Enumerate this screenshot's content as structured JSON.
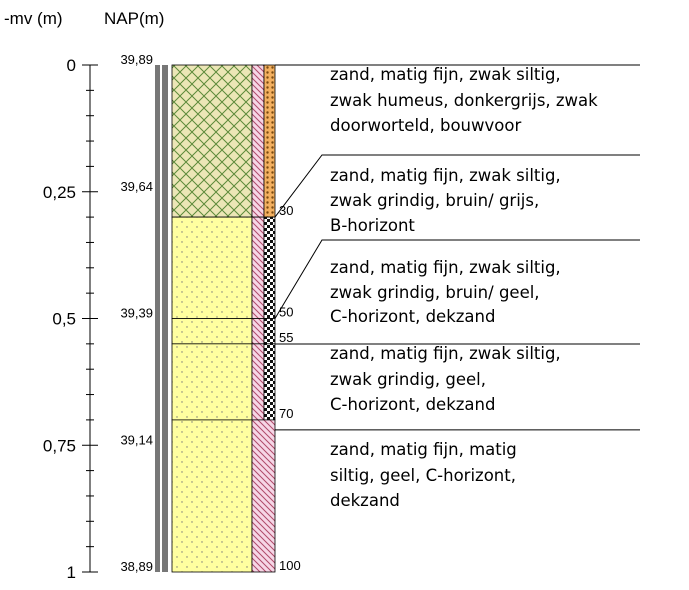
{
  "depth_axis": {
    "title": "-mv (m)",
    "ticks": [
      {
        "value": 0,
        "label": "0"
      },
      {
        "value": 0.25,
        "label": "0,25"
      },
      {
        "value": 0.5,
        "label": "0,5"
      },
      {
        "value": 0.75,
        "label": "0,75"
      },
      {
        "value": 1,
        "label": "1"
      }
    ]
  },
  "nap_axis": {
    "title": "NAP(m)",
    "labels": [
      "39,89",
      "39,64",
      "39,39",
      "39,14",
      "38,89"
    ]
  },
  "layers": [
    {
      "bottom": 30,
      "description": [
        "zand, matig fijn, zwak siltig,",
        "zwak humeus, donkergrijs, zwak",
        "doorworteld, bouwvoor"
      ]
    },
    {
      "bottom": 50,
      "description": [
        "zand, matig fijn, zwak siltig,",
        "zwak grindig, bruin/ grijs,",
        "B-horizont"
      ]
    },
    {
      "bottom": 55,
      "description": [
        "zand, matig fijn, zwak siltig,",
        "zwak grindig, bruin/ geel,",
        "C-horizont, dekzand"
      ]
    },
    {
      "bottom": 70,
      "description": [
        "zand, matig fijn, zwak siltig,",
        "zwak grindig, geel,",
        "C-horizont, dekzand"
      ]
    },
    {
      "bottom": 100,
      "description": [
        "zand, matig fijn, matig",
        "siltig, geel, C-horizont,",
        "dekzand"
      ]
    }
  ]
}
